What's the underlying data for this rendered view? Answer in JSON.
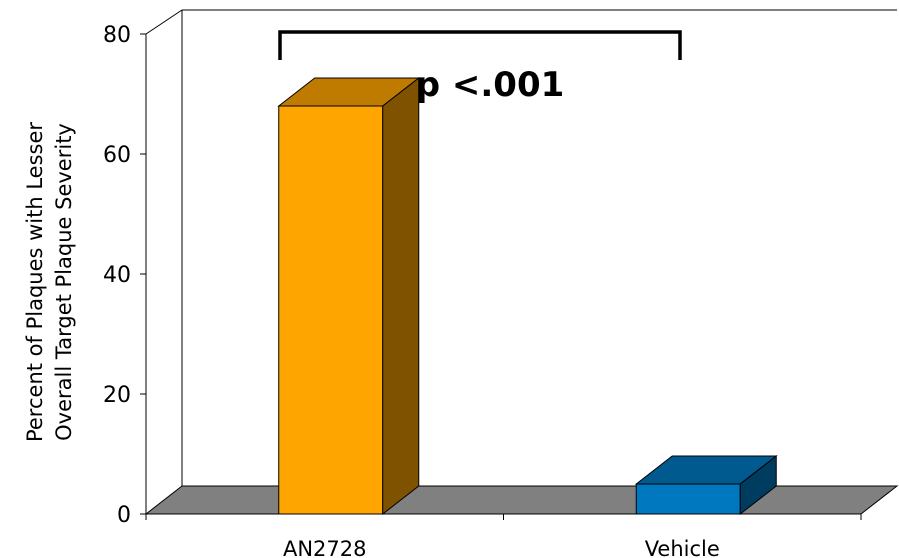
{
  "chart_data": {
    "type": "bar",
    "categories": [
      "AN2728",
      "Vehicle"
    ],
    "values": [
      68,
      5
    ],
    "ylabel_lines": [
      "Percent of Plaques with Lesser",
      "Overall Target Plaque Severity"
    ],
    "ylim": [
      0,
      80
    ],
    "yticks": [
      "0",
      "20",
      "40",
      "60",
      "80"
    ],
    "annotation": "p <.001",
    "grid": false,
    "colors": {
      "AN2728": {
        "front": "#ffa500",
        "top": "#bf7b00",
        "side": "#7f5200"
      },
      "Vehicle": {
        "front": "#0078bf",
        "top": "#005a8f",
        "side": "#003c60"
      },
      "floor": "#808080"
    }
  }
}
